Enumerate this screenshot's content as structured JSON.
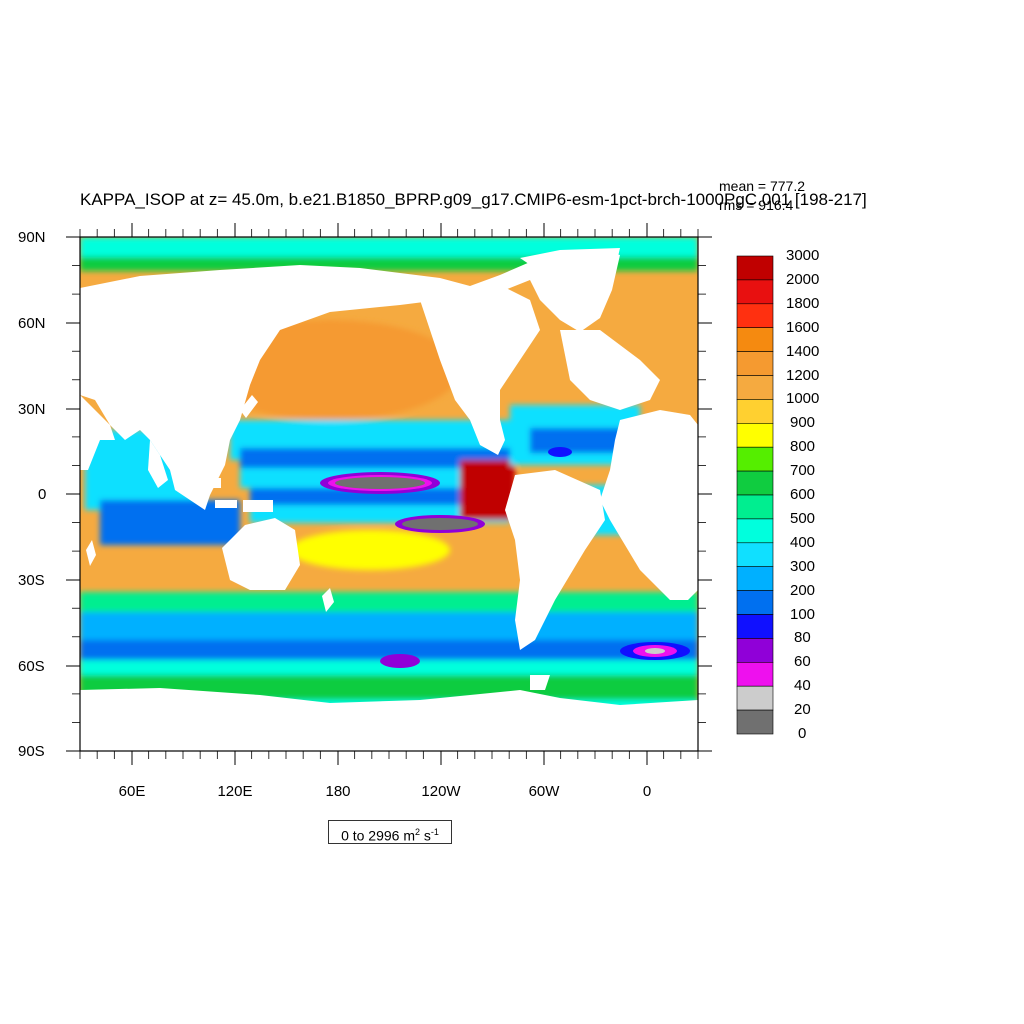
{
  "title": {
    "main": "KAPPA_ISOP at z=  45.0m, b.e21.B1850_BPRP.g09_g17.CMIP6-esm-1pct-brch-1000PgC.001 [198-217]",
    "mean": "mean = 777.2",
    "rms": "rms = 916.4"
  },
  "axes": {
    "lat_labels": [
      "90N",
      "60N",
      "30N",
      "0",
      "30S",
      "60S",
      "90S"
    ],
    "lon_labels": [
      "60E",
      "120E",
      "180",
      "120W",
      "60W",
      "0"
    ],
    "lat_range": [
      -90,
      90
    ],
    "lon_range": [
      30,
      390
    ]
  },
  "colorbar": {
    "labels": [
      "3000",
      "2000",
      "1800",
      "1600",
      "1400",
      "1200",
      "1000",
      "900",
      "800",
      "700",
      "600",
      "500",
      "400",
      "300",
      "200",
      "100",
      "80",
      "60",
      "40",
      "20",
      "0"
    ],
    "colors": [
      "#c00000",
      "#e81010",
      "#ff3010",
      "#f58a10",
      "#f59a30",
      "#f5aa40",
      "#ffd030",
      "#ffff00",
      "#55ee00",
      "#10cc40",
      "#00ee90",
      "#00ffdd",
      "#10e0ff",
      "#00b0ff",
      "#0070f0",
      "#1010ff",
      "#9000d8",
      "#ee10ee",
      "#cccccc",
      "#707070"
    ]
  },
  "units": {
    "range_text": "0 to 2996 m",
    "sup1": "2",
    "mid": " s",
    "sup2": "-1"
  },
  "map_colors": {
    "land": "#ffffff",
    "frame": "#000000"
  }
}
